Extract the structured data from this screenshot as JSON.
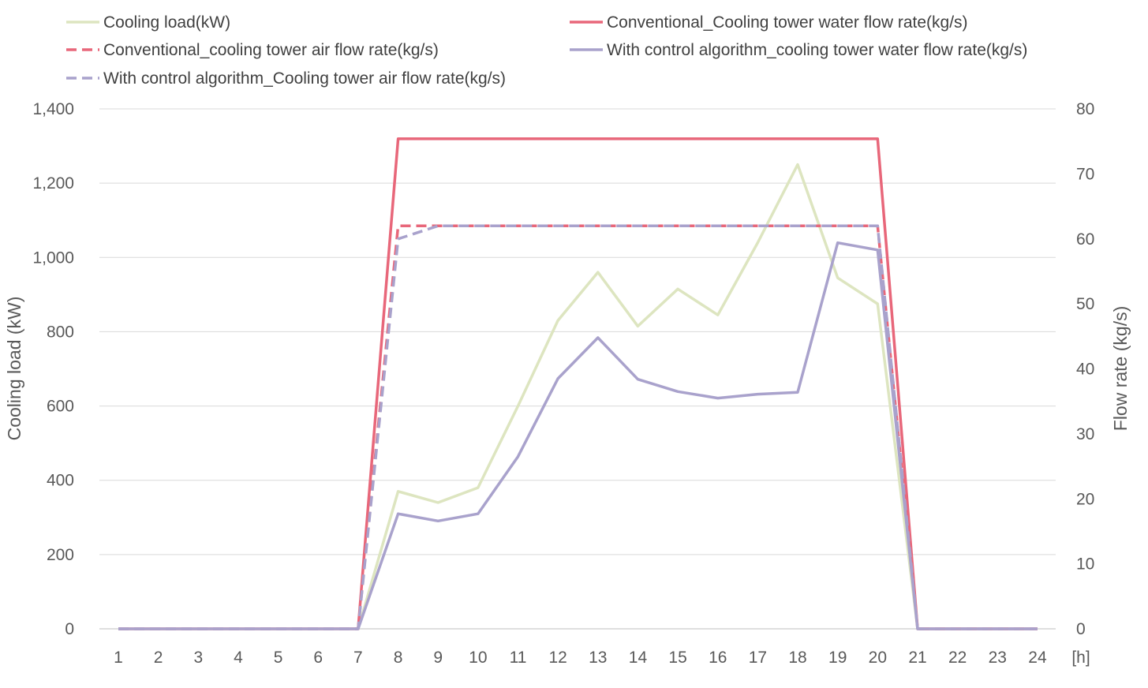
{
  "chart_data": {
    "type": "line",
    "xlabel": "",
    "x_unit": "[h]",
    "ylabel_left": "Cooling load (kW)",
    "ylabel_right": "Flow rate (kg/s)",
    "ylim_left": [
      0,
      1400
    ],
    "ylim_right": [
      0,
      80
    ],
    "y_ticks_left": [
      "0",
      "200",
      "400",
      "600",
      "800",
      "1,000",
      "1,200",
      "1,400"
    ],
    "y_ticks_right": [
      "0",
      "10",
      "20",
      "30",
      "40",
      "50",
      "60",
      "70",
      "80"
    ],
    "categories": [
      "1",
      "2",
      "3",
      "4",
      "5",
      "6",
      "7",
      "8",
      "9",
      "10",
      "11",
      "12",
      "13",
      "14",
      "15",
      "16",
      "17",
      "18",
      "19",
      "20",
      "21",
      "22",
      "23",
      "24"
    ],
    "grid": "horizontal",
    "legend_position": "top",
    "series": [
      {
        "name": "Cooling load(kW)",
        "axis": "left",
        "color": "#dde5c0",
        "dash": "solid",
        "values": [
          0,
          0,
          0,
          0,
          0,
          0,
          0,
          370,
          340,
          380,
          600,
          830,
          960,
          815,
          915,
          845,
          1040,
          1250,
          945,
          875,
          0,
          0,
          0,
          0
        ]
      },
      {
        "name": "Conventional_Cooling tower water flow rate(kg/s)",
        "axis": "right",
        "color": "#e8677a",
        "dash": "solid",
        "values": [
          0,
          0,
          0,
          0,
          0,
          0,
          0,
          75.4,
          75.4,
          75.4,
          75.4,
          75.4,
          75.4,
          75.4,
          75.4,
          75.4,
          75.4,
          75.4,
          75.4,
          75.4,
          0,
          0,
          0,
          0
        ]
      },
      {
        "name": "Conventional_cooling tower air flow rate(kg/s)",
        "axis": "right",
        "color": "#e8677a",
        "dash": "dashed",
        "values": [
          0,
          0,
          0,
          0,
          0,
          0,
          0,
          62,
          62,
          62,
          62,
          62,
          62,
          62,
          62,
          62,
          62,
          62,
          62,
          62,
          0,
          0,
          0,
          0
        ]
      },
      {
        "name": "With control algorithm_cooling tower water flow rate(kg/s)",
        "axis": "right",
        "color": "#a9a2cc",
        "dash": "solid",
        "values": [
          0,
          0,
          0,
          0,
          0,
          0,
          0,
          17.7,
          16.6,
          17.7,
          26.5,
          38.5,
          44.8,
          38.4,
          36.5,
          35.5,
          36.1,
          36.4,
          59.4,
          58.3,
          0,
          0,
          0,
          0
        ]
      },
      {
        "name": "With control algorithm_Cooling tower air flow rate(kg/s)",
        "axis": "right",
        "color": "#a9a2cc",
        "dash": "dashed",
        "values": [
          0,
          0,
          0,
          0,
          0,
          0,
          0,
          60,
          62,
          62,
          62,
          62,
          62,
          62,
          62,
          62,
          62,
          62,
          62,
          62,
          0,
          0,
          0,
          0
        ]
      }
    ]
  }
}
